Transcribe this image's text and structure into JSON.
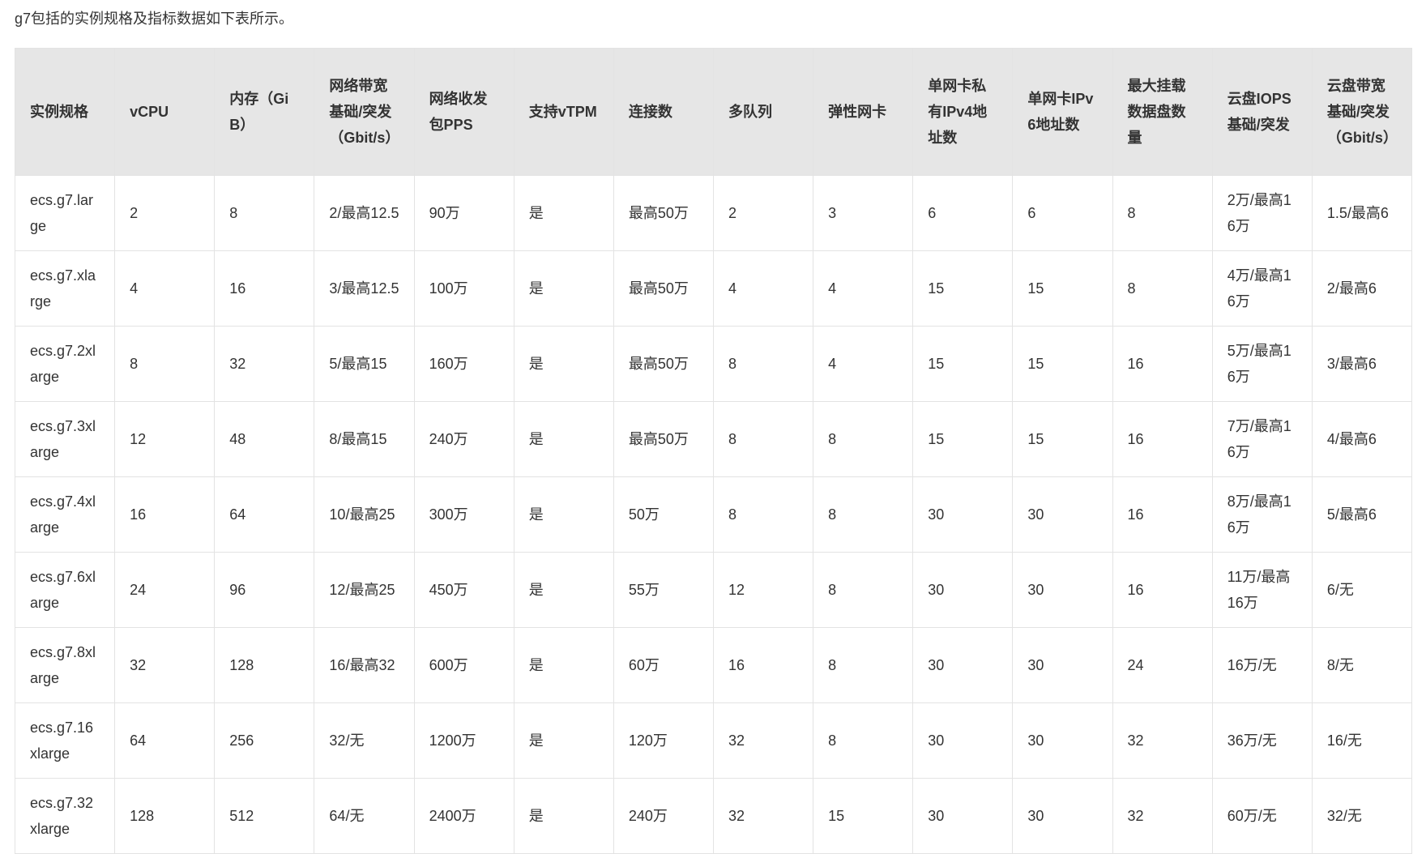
{
  "intro": "g7包括的实例规格及指标数据如下表所示。",
  "table": {
    "headers": [
      "实例规格",
      "vCPU",
      "内存（GiB）",
      "网络带宽基础/突发（Gbit/s）",
      "网络收发包PPS",
      "支持vTPM",
      "连接数",
      "多队列",
      "弹性网卡",
      "单网卡私有IPv4地址数",
      "单网卡IPv6地址数",
      "最大挂载数据盘数量",
      "云盘IOPS基础/突发",
      "云盘带宽基础/突发（Gbit/s）"
    ],
    "rows": [
      [
        "ecs.g7.large",
        "2",
        "8",
        "2/最高12.5",
        "90万",
        "是",
        "最高50万",
        "2",
        "3",
        "6",
        "6",
        "8",
        "2万/最高16万",
        "1.5/最高6"
      ],
      [
        "ecs.g7.xlarge",
        "4",
        "16",
        "3/最高12.5",
        "100万",
        "是",
        "最高50万",
        "4",
        "4",
        "15",
        "15",
        "8",
        "4万/最高16万",
        "2/最高6"
      ],
      [
        "ecs.g7.2xlarge",
        "8",
        "32",
        "5/最高15",
        "160万",
        "是",
        "最高50万",
        "8",
        "4",
        "15",
        "15",
        "16",
        "5万/最高16万",
        "3/最高6"
      ],
      [
        "ecs.g7.3xlarge",
        "12",
        "48",
        "8/最高15",
        "240万",
        "是",
        "最高50万",
        "8",
        "8",
        "15",
        "15",
        "16",
        "7万/最高16万",
        "4/最高6"
      ],
      [
        "ecs.g7.4xlarge",
        "16",
        "64",
        "10/最高25",
        "300万",
        "是",
        "50万",
        "8",
        "8",
        "30",
        "30",
        "16",
        "8万/最高16万",
        "5/最高6"
      ],
      [
        "ecs.g7.6xlarge",
        "24",
        "96",
        "12/最高25",
        "450万",
        "是",
        "55万",
        "12",
        "8",
        "30",
        "30",
        "16",
        "11万/最高16万",
        "6/无"
      ],
      [
        "ecs.g7.8xlarge",
        "32",
        "128",
        "16/最高32",
        "600万",
        "是",
        "60万",
        "16",
        "8",
        "30",
        "30",
        "24",
        "16万/无",
        "8/无"
      ],
      [
        "ecs.g7.16xlarge",
        "64",
        "256",
        "32/无",
        "1200万",
        "是",
        "120万",
        "32",
        "8",
        "30",
        "30",
        "32",
        "36万/无",
        "16/无"
      ],
      [
        "ecs.g7.32xlarge",
        "128",
        "512",
        "64/无",
        "2400万",
        "是",
        "240万",
        "32",
        "15",
        "30",
        "30",
        "32",
        "60万/无",
        "32/无"
      ]
    ]
  }
}
